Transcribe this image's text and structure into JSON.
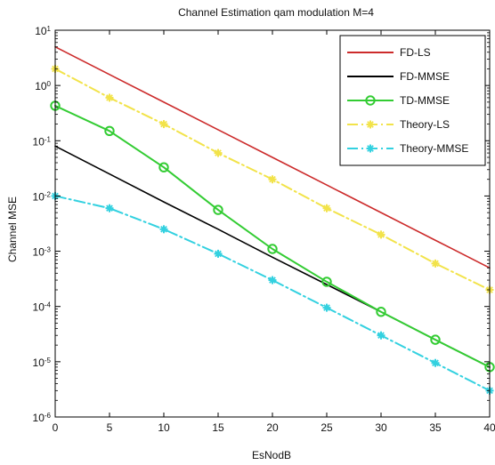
{
  "chart_data": {
    "type": "line",
    "title": "Channel Estimation qam modulation M=4",
    "xlabel": "EsNodB",
    "ylabel": "Channel MSE",
    "x_scale": "linear",
    "y_scale": "log",
    "xlim": [
      0,
      40
    ],
    "ylim": [
      1e-06,
      10
    ],
    "grid": false,
    "legend_position": "top-right",
    "x_ticks": [
      0,
      5,
      10,
      15,
      20,
      25,
      30,
      35,
      40
    ],
    "y_ticks": [
      {
        "value": 10,
        "base": "10",
        "exp": "1"
      },
      {
        "value": 1,
        "base": "10",
        "exp": "0"
      },
      {
        "value": 0.1,
        "base": "10",
        "exp": "-1"
      },
      {
        "value": 0.01,
        "base": "10",
        "exp": "-2"
      },
      {
        "value": 0.001,
        "base": "10",
        "exp": "-3"
      },
      {
        "value": 0.0001,
        "base": "10",
        "exp": "-4"
      },
      {
        "value": 1e-05,
        "base": "10",
        "exp": "-5"
      },
      {
        "value": 1e-06,
        "base": "10",
        "exp": "-6"
      }
    ],
    "series": [
      {
        "name": "FD-LS",
        "color": "#cc2b2b",
        "dash": "solid",
        "marker": "none",
        "x": [
          0,
          5,
          10,
          15,
          20,
          25,
          30,
          35,
          40
        ],
        "values": [
          5,
          1.58,
          0.5,
          0.158,
          0.05,
          0.0158,
          0.005,
          0.00158,
          0.0005
        ]
      },
      {
        "name": "FD-MMSE",
        "color": "#000000",
        "dash": "solid",
        "marker": "none",
        "x": [
          0,
          5,
          10,
          15,
          20,
          25,
          30,
          35,
          40
        ],
        "values": [
          0.08,
          0.025,
          0.0078,
          0.0025,
          0.00078,
          0.00025,
          8e-05,
          2.5e-05,
          8e-06
        ]
      },
      {
        "name": "TD-MMSE",
        "color": "#33cc33",
        "dash": "solid",
        "marker": "circle",
        "x": [
          0,
          5,
          10,
          15,
          20,
          25,
          30,
          35,
          40
        ],
        "values": [
          0.43,
          0.15,
          0.033,
          0.0056,
          0.0011,
          0.00028,
          8e-05,
          2.5e-05,
          8e-06
        ]
      },
      {
        "name": "Theory-LS",
        "color": "#f2e34a",
        "dash": "dashdot",
        "marker": "star",
        "x": [
          0,
          5,
          10,
          15,
          20,
          25,
          30,
          35,
          40
        ],
        "values": [
          2,
          0.6,
          0.2,
          0.06,
          0.02,
          0.006,
          0.002,
          0.0006,
          0.0002
        ]
      },
      {
        "name": "Theory-MMSE",
        "color": "#33d1e0",
        "dash": "dashdot",
        "marker": "star",
        "x": [
          0,
          5,
          10,
          15,
          20,
          25,
          30,
          35,
          40
        ],
        "values": [
          0.01,
          0.006,
          0.0025,
          0.0009,
          0.0003,
          9.5e-05,
          3e-05,
          9.5e-06,
          3e-06
        ]
      }
    ]
  }
}
